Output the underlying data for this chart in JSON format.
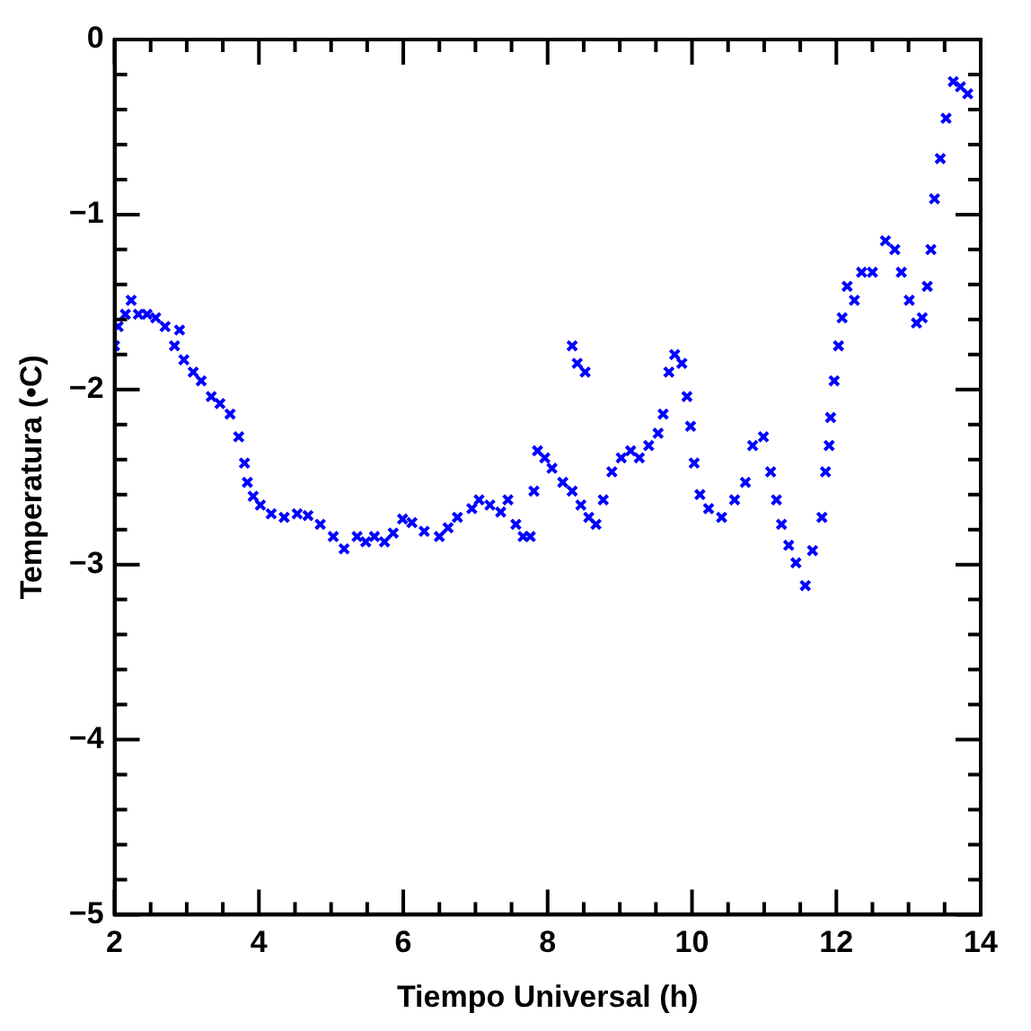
{
  "chart_data": {
    "type": "scatter",
    "xlabel": "Tiempo Universal (h)",
    "ylabel": "Temperatura (•C)",
    "marker": "cross",
    "grid": false,
    "legend": false,
    "xlim": [
      2,
      14
    ],
    "xticks": [
      2,
      {
        "value": 2.5,
        "label": null
      },
      {
        "value": 3,
        "label": null
      },
      {
        "value": 3.5,
        "label": null
      },
      4,
      {
        "value": 4.5,
        "label": null
      },
      {
        "value": 5,
        "label": null
      },
      {
        "value": 5.5,
        "label": null
      },
      6,
      {
        "value": 6.5,
        "label": null
      },
      {
        "value": 7,
        "label": null
      },
      {
        "value": 7.5,
        "label": null
      },
      8,
      {
        "value": 8.5,
        "label": null
      },
      {
        "value": 9,
        "label": null
      },
      {
        "value": 9.5,
        "label": null
      },
      10,
      {
        "value": 10.5,
        "label": null
      },
      {
        "value": 11,
        "label": null
      },
      {
        "value": 11.5,
        "label": null
      },
      12,
      {
        "value": 12.5,
        "label": null
      },
      {
        "value": 13,
        "label": null
      },
      {
        "value": 13.5,
        "label": null
      },
      14
    ],
    "ylim": [
      -5,
      0
    ],
    "yticks": [
      -5,
      {
        "value": -4.8,
        "label": null
      },
      {
        "value": -4.6,
        "label": null
      },
      {
        "value": -4.4,
        "label": null
      },
      {
        "value": -4.2,
        "label": null
      },
      -4,
      {
        "value": -3.8,
        "label": null
      },
      {
        "value": -3.6,
        "label": null
      },
      {
        "value": -3.4,
        "label": null
      },
      {
        "value": -3.2,
        "label": null
      },
      -3,
      {
        "value": -2.8,
        "label": null
      },
      {
        "value": -2.6,
        "label": null
      },
      {
        "value": -2.4,
        "label": null
      },
      {
        "value": -2.2,
        "label": null
      },
      -2,
      {
        "value": -1.8,
        "label": null
      },
      {
        "value": -1.6,
        "label": null
      },
      {
        "value": -1.4,
        "label": null
      },
      {
        "value": -1.2,
        "label": null
      },
      -1,
      {
        "value": -0.8,
        "label": null
      },
      {
        "value": -0.6,
        "label": null
      },
      {
        "value": -0.4,
        "label": null
      },
      {
        "value": -0.2,
        "label": null
      },
      0
    ],
    "series": [
      {
        "color": "#0000ff",
        "x": [
          2.0,
          2.05,
          2.15,
          2.23,
          2.33,
          2.45,
          2.57,
          2.7,
          2.83,
          2.9,
          2.96,
          3.09,
          3.2,
          3.34,
          3.46,
          3.6,
          3.72,
          3.8,
          3.84,
          3.92,
          4.02,
          4.17,
          4.35,
          4.53,
          4.68,
          4.85,
          5.03,
          5.18,
          5.36,
          5.48,
          5.6,
          5.74,
          5.86,
          5.99,
          6.12,
          6.29,
          6.5,
          6.62,
          6.75,
          6.95,
          7.05,
          7.2,
          7.35,
          7.45,
          7.56,
          7.66,
          7.76,
          7.81,
          7.86,
          7.96,
          8.06,
          8.21,
          8.34,
          8.46,
          8.57,
          8.67,
          8.77,
          8.89,
          9.02,
          9.15,
          9.27,
          9.4,
          9.53,
          9.6,
          9.68,
          9.76,
          9.86,
          9.93,
          9.98,
          10.03,
          10.11,
          10.23,
          10.41,
          10.59,
          10.74,
          10.84,
          10.99,
          11.09,
          11.17,
          11.24,
          11.34,
          11.44,
          11.57,
          11.67,
          11.8,
          11.85,
          11.9,
          11.92,
          11.97,
          12.03,
          12.08,
          12.15,
          12.25,
          12.35,
          12.5,
          12.68,
          12.81,
          12.9,
          13.01,
          13.11,
          13.19,
          13.26,
          13.31,
          13.36,
          13.44,
          13.52,
          13.62,
          13.72,
          13.82,
          8.34,
          8.41,
          8.52
        ],
        "values": [
          -1.75,
          -1.64,
          -1.57,
          -1.49,
          -1.57,
          -1.57,
          -1.59,
          -1.64,
          -1.75,
          -1.66,
          -1.83,
          -1.9,
          -1.95,
          -2.04,
          -2.08,
          -2.14,
          -2.27,
          -2.42,
          -2.53,
          -2.61,
          -2.66,
          -2.71,
          -2.73,
          -2.71,
          -2.72,
          -2.77,
          -2.84,
          -2.91,
          -2.84,
          -2.87,
          -2.84,
          -2.87,
          -2.82,
          -2.74,
          -2.76,
          -2.81,
          -2.84,
          -2.79,
          -2.73,
          -2.68,
          -2.63,
          -2.66,
          -2.7,
          -2.63,
          -2.77,
          -2.84,
          -2.84,
          -2.58,
          -2.35,
          -2.39,
          -2.45,
          -2.53,
          -2.58,
          -2.66,
          -2.73,
          -2.77,
          -2.63,
          -2.47,
          -2.39,
          -2.35,
          -2.39,
          -2.32,
          -2.25,
          -2.14,
          -1.9,
          -1.8,
          -1.85,
          -2.04,
          -2.21,
          -2.42,
          -2.6,
          -2.68,
          -2.73,
          -2.63,
          -2.53,
          -2.32,
          -2.27,
          -2.47,
          -2.63,
          -2.77,
          -2.89,
          -2.99,
          -3.12,
          -2.92,
          -2.73,
          -2.47,
          -2.32,
          -2.16,
          -1.95,
          -1.75,
          -1.59,
          -1.41,
          -1.49,
          -1.33,
          -1.33,
          -1.15,
          -1.2,
          -1.33,
          -1.49,
          -1.62,
          -1.59,
          -1.41,
          -1.2,
          -0.91,
          -0.68,
          -0.45,
          -0.24,
          -0.27,
          -0.31,
          -1.75,
          -1.85,
          -1.9
        ]
      }
    ]
  }
}
